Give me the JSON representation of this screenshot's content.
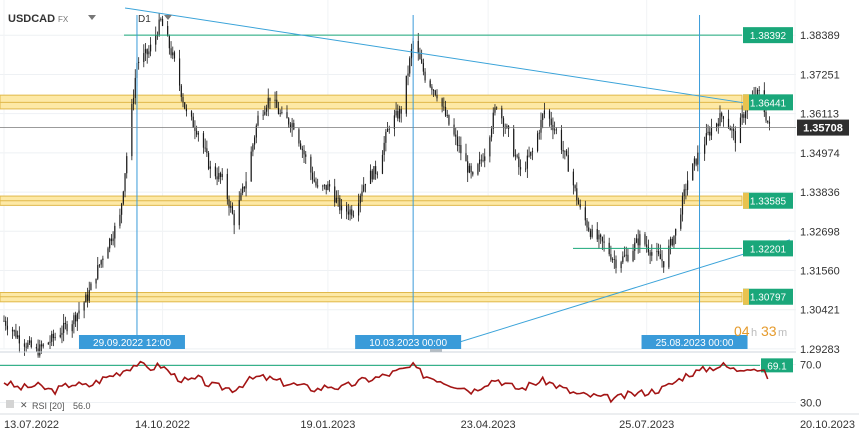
{
  "header": {
    "symbol": "USDCAD",
    "market": "FX",
    "timeframe": "D1"
  },
  "countdown": {
    "hours": "04",
    "hours_unit": "h",
    "minutes": "33",
    "minutes_unit": "m"
  },
  "rsi_legend": {
    "label": "RSI [20]",
    "value": "56.0"
  },
  "colors": {
    "candle": "#1a1a1a",
    "zone_fill": "#fde9a6",
    "zone_line": "#e0b84a",
    "level_line": "#1aa77a",
    "level_tag": "#1aa77a",
    "trendline": "#3aa3d9",
    "date_marker": "#3a9bd9",
    "price_tag": "#2e2e2e",
    "rsi_line": "#a31414",
    "countdown": "#e59a2b",
    "axis_text": "#333333"
  },
  "chart_data": {
    "type": "candlestick",
    "title": "USDCAD",
    "x_axis": {
      "range": [
        "2022-07-13",
        "2023-10-20"
      ],
      "tick_labels": [
        "13.07.2022",
        "14.10.2022",
        "19.01.2023",
        "23.04.2023",
        "25.07.2023",
        "20.10.2023"
      ]
    },
    "y_axis": {
      "range": [
        1.2928,
        1.3918
      ],
      "tick_labels": [
        "1.38389",
        "1.37251",
        "1.36113",
        "1.34974",
        "1.33836",
        "1.32698",
        "1.31560",
        "1.30421",
        "1.29283"
      ]
    },
    "grid": true,
    "current_price": "1.35708",
    "horizontal_levels": [
      {
        "label": "1.38392",
        "value": 1.38392,
        "kind": "line"
      },
      {
        "label": "1.36441",
        "value": 1.36441,
        "kind": "zone",
        "band": [
          1.3625,
          1.3665
        ]
      },
      {
        "label": "1.33585",
        "value": 1.33585,
        "kind": "zone",
        "band": [
          1.3345,
          1.3372
        ]
      },
      {
        "label": "1.32201",
        "value": 1.32201,
        "kind": "line"
      },
      {
        "label": "1.30797",
        "value": 1.30797,
        "kind": "zone",
        "band": [
          1.3065,
          1.3092
        ]
      }
    ],
    "vertical_markers": [
      {
        "label": "29.09.2022 12:00",
        "date": "2022-09-29"
      },
      {
        "label": "10.03.2023 00:00",
        "date": "2023-03-10"
      },
      {
        "label": "25.08.2023 00:00",
        "date": "2023-08-25"
      }
    ],
    "trendlines": [
      {
        "from": [
          "2022-09-22",
          1.3918
        ],
        "to": [
          "2023-09-21",
          1.3642
        ]
      },
      {
        "from": [
          "2023-03-24",
          1.2928
        ],
        "to": [
          "2023-10-17",
          1.3245
        ]
      }
    ],
    "price_path": [
      [
        "2022-07-13",
        1.301
      ],
      [
        "2022-07-22",
        1.296
      ],
      [
        "2022-08-01",
        1.292
      ],
      [
        "2022-08-11",
        1.296
      ],
      [
        "2022-08-22",
        1.301
      ],
      [
        "2022-08-31",
        1.308
      ],
      [
        "2022-09-09",
        1.32
      ],
      [
        "2022-09-19",
        1.331
      ],
      [
        "2022-09-29",
        1.376
      ],
      [
        "2022-10-06",
        1.379
      ],
      [
        "2022-10-13",
        1.388
      ],
      [
        "2022-10-21",
        1.376
      ],
      [
        "2022-10-28",
        1.361
      ],
      [
        "2022-11-04",
        1.356
      ],
      [
        "2022-11-11",
        1.345
      ],
      [
        "2022-11-18",
        1.342
      ],
      [
        "2022-11-25",
        1.33
      ],
      [
        "2022-12-02",
        1.342
      ],
      [
        "2022-12-09",
        1.36
      ],
      [
        "2022-12-16",
        1.366
      ],
      [
        "2022-12-23",
        1.36
      ],
      [
        "2022-12-30",
        1.358
      ],
      [
        "2023-01-06",
        1.348
      ],
      [
        "2023-01-13",
        1.339
      ],
      [
        "2023-01-20",
        1.34
      ],
      [
        "2023-01-27",
        1.333
      ],
      [
        "2023-02-03",
        1.333
      ],
      [
        "2023-02-10",
        1.342
      ],
      [
        "2023-02-17",
        1.345
      ],
      [
        "2023-02-24",
        1.358
      ],
      [
        "2023-03-03",
        1.362
      ],
      [
        "2023-03-10",
        1.382
      ],
      [
        "2023-03-17",
        1.372
      ],
      [
        "2023-03-24",
        1.367
      ],
      [
        "2023-03-31",
        1.358
      ],
      [
        "2023-04-07",
        1.35
      ],
      [
        "2023-04-14",
        1.342
      ],
      [
        "2023-04-21",
        1.35
      ],
      [
        "2023-04-28",
        1.364
      ],
      [
        "2023-05-05",
        1.355
      ],
      [
        "2023-05-12",
        1.344
      ],
      [
        "2023-05-19",
        1.35
      ],
      [
        "2023-05-26",
        1.362
      ],
      [
        "2023-06-02",
        1.356
      ],
      [
        "2023-06-09",
        1.346
      ],
      [
        "2023-06-16",
        1.333
      ],
      [
        "2023-06-23",
        1.326
      ],
      [
        "2023-06-30",
        1.323
      ],
      [
        "2023-07-07",
        1.318
      ],
      [
        "2023-07-14",
        1.32
      ],
      [
        "2023-07-21",
        1.325
      ],
      [
        "2023-07-28",
        1.321
      ],
      [
        "2023-08-04",
        1.318
      ],
      [
        "2023-08-11",
        1.327
      ],
      [
        "2023-08-18",
        1.342
      ],
      [
        "2023-08-25",
        1.35
      ],
      [
        "2023-09-01",
        1.357
      ],
      [
        "2023-09-08",
        1.361
      ],
      [
        "2023-09-15",
        1.354
      ],
      [
        "2023-09-22",
        1.364
      ],
      [
        "2023-09-29",
        1.367
      ],
      [
        "2023-10-05",
        1.3571
      ]
    ],
    "rsi": {
      "label": "RSI [20]",
      "last_value": 56.0,
      "tick_labels": [
        "70.0",
        "30.0"
      ],
      "level_tag": "69.1",
      "level": 69.1,
      "range": [
        20,
        80
      ],
      "path": [
        [
          "2022-07-13",
          52
        ],
        [
          "2022-07-22",
          45
        ],
        [
          "2022-08-01",
          48
        ],
        [
          "2022-08-11",
          42
        ],
        [
          "2022-08-22",
          50
        ],
        [
          "2022-08-31",
          47
        ],
        [
          "2022-09-09",
          55
        ],
        [
          "2022-09-19",
          62
        ],
        [
          "2022-09-29",
          71
        ],
        [
          "2022-10-06",
          66
        ],
        [
          "2022-10-13",
          69
        ],
        [
          "2022-10-21",
          58
        ],
        [
          "2022-10-28",
          52
        ],
        [
          "2022-11-04",
          55
        ],
        [
          "2022-11-11",
          48
        ],
        [
          "2022-11-18",
          46
        ],
        [
          "2022-11-25",
          44
        ],
        [
          "2022-12-02",
          52
        ],
        [
          "2022-12-09",
          57
        ],
        [
          "2022-12-16",
          55
        ],
        [
          "2022-12-23",
          51
        ],
        [
          "2022-12-30",
          49
        ],
        [
          "2023-01-06",
          46
        ],
        [
          "2023-01-13",
          44
        ],
        [
          "2023-01-20",
          48
        ],
        [
          "2023-01-27",
          45
        ],
        [
          "2023-02-03",
          50
        ],
        [
          "2023-02-10",
          54
        ],
        [
          "2023-02-17",
          56
        ],
        [
          "2023-02-24",
          60
        ],
        [
          "2023-03-03",
          64
        ],
        [
          "2023-03-10",
          68
        ],
        [
          "2023-03-17",
          58
        ],
        [
          "2023-03-24",
          55
        ],
        [
          "2023-03-31",
          50
        ],
        [
          "2023-04-07",
          47
        ],
        [
          "2023-04-14",
          42
        ],
        [
          "2023-04-21",
          50
        ],
        [
          "2023-04-28",
          55
        ],
        [
          "2023-05-05",
          48
        ],
        [
          "2023-05-12",
          44
        ],
        [
          "2023-05-19",
          50
        ],
        [
          "2023-05-26",
          53
        ],
        [
          "2023-06-02",
          48
        ],
        [
          "2023-06-09",
          42
        ],
        [
          "2023-06-16",
          38
        ],
        [
          "2023-06-23",
          37
        ],
        [
          "2023-06-30",
          35
        ],
        [
          "2023-07-07",
          34
        ],
        [
          "2023-07-14",
          38
        ],
        [
          "2023-07-21",
          40
        ],
        [
          "2023-07-28",
          42
        ],
        [
          "2023-08-04",
          45
        ],
        [
          "2023-08-11",
          52
        ],
        [
          "2023-08-18",
          60
        ],
        [
          "2023-08-25",
          63
        ],
        [
          "2023-09-01",
          67
        ],
        [
          "2023-09-08",
          69
        ],
        [
          "2023-09-15",
          64
        ],
        [
          "2023-09-22",
          68
        ],
        [
          "2023-09-29",
          65
        ],
        [
          "2023-10-05",
          56
        ]
      ]
    }
  }
}
